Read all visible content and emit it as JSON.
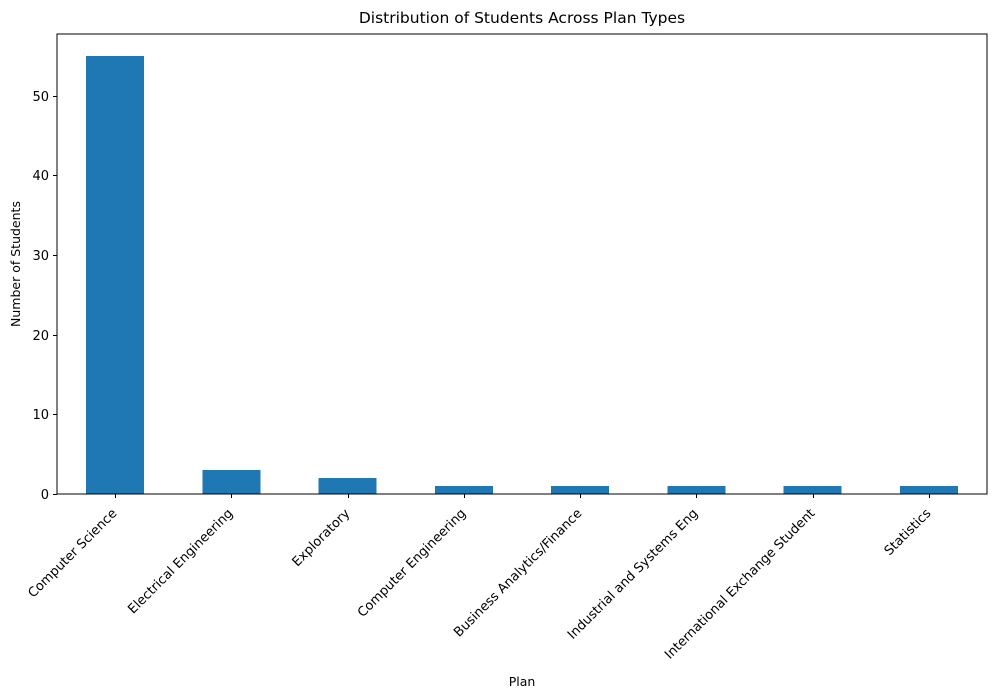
{
  "chart_data": {
    "type": "bar",
    "title": "Distribution of Students Across Plan Types",
    "xlabel": "Plan",
    "ylabel": "Number of Students",
    "categories": [
      "Computer Science",
      "Electrical Engineering",
      "Exploratory",
      "Computer Engineering",
      "Business Analytics/Finance",
      "Industrial and Systems Eng",
      "International Exchange Student",
      "Statistics"
    ],
    "values": [
      55,
      3,
      2,
      1,
      1,
      1,
      1,
      1
    ],
    "ylim": [
      0,
      57.75
    ],
    "yticks": [
      0,
      10,
      20,
      30,
      40,
      50
    ],
    "grid": false,
    "bar_color": "#1f77b4",
    "xtick_rotation": -45
  }
}
